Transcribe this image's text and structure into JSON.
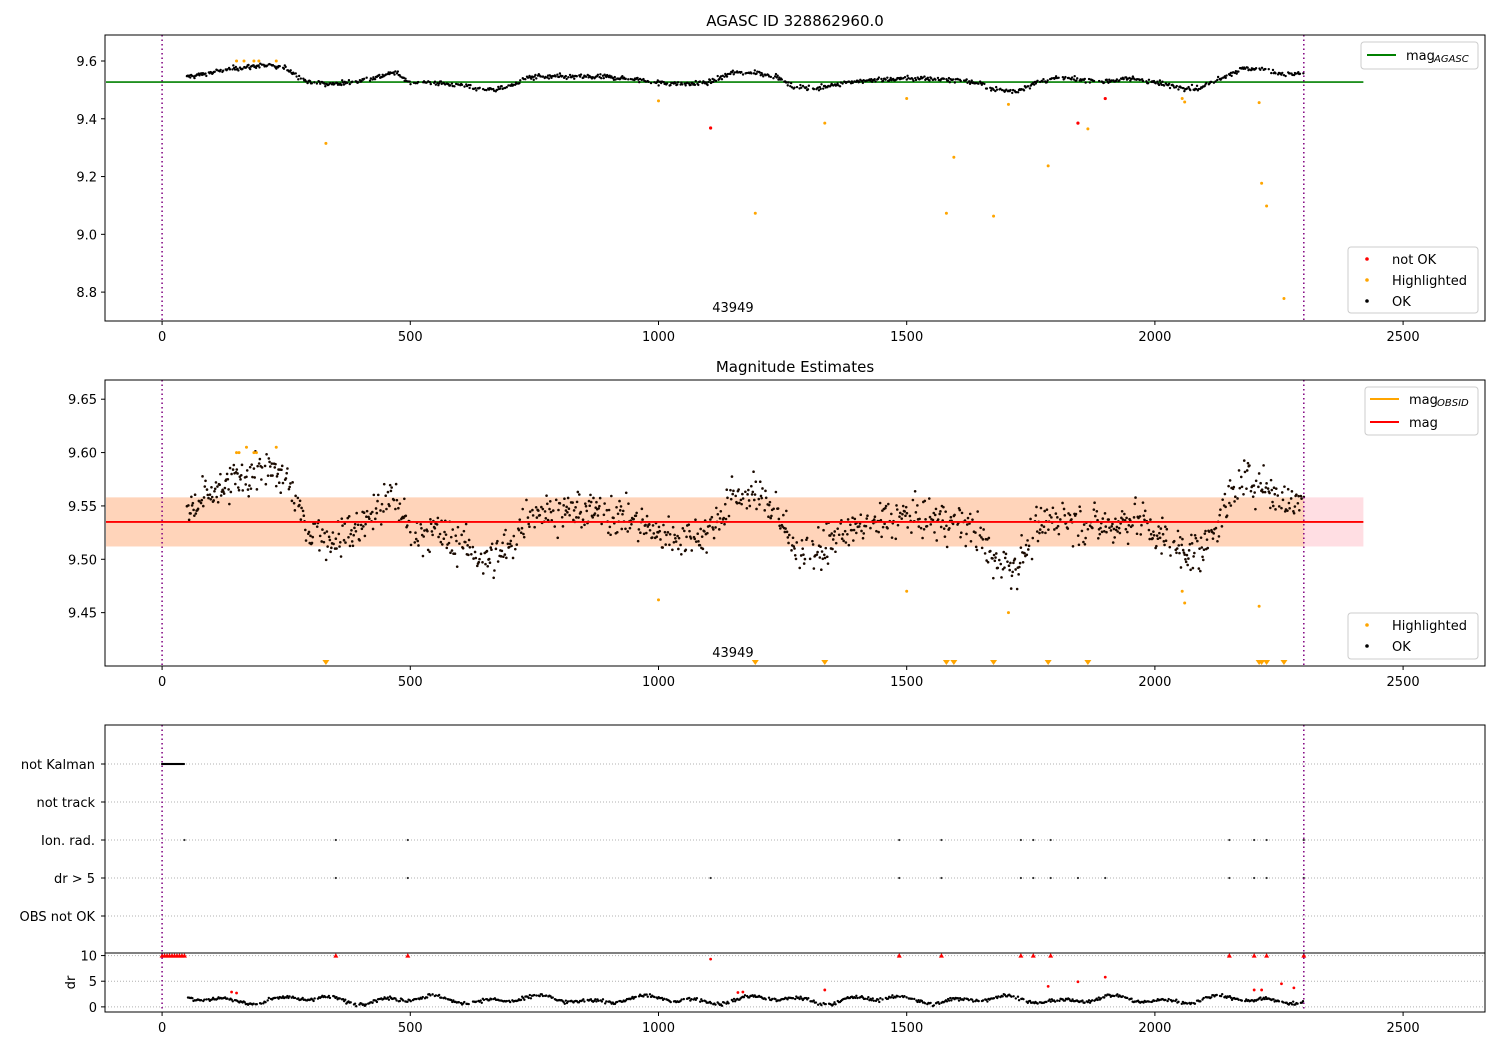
{
  "chart_data": [
    {
      "type": "scatter",
      "title": "AGASC ID 328862960.0",
      "annotation": "43949",
      "xlim": [
        -115,
        2665
      ],
      "ylim": [
        8.7,
        9.69
      ],
      "xticks": [
        0,
        500,
        1000,
        1500,
        2000,
        2500
      ],
      "yticks": [
        8.8,
        9.0,
        9.2,
        9.4,
        9.6
      ],
      "ytick_labels": [
        "8.8",
        "9.0",
        "9.2",
        "9.4",
        "9.6"
      ],
      "vlines": [
        0,
        2300
      ],
      "hlines": [
        {
          "name": "mag_AGASC",
          "y": 9.527,
          "x": [
            -115,
            2420
          ],
          "color": "#008000"
        }
      ],
      "legend_lines": [
        {
          "label": "mag",
          "sub": "AGASC",
          "color": "#008000"
        }
      ],
      "legend_points": [
        {
          "label": "not OK",
          "color": "#ff0000"
        },
        {
          "label": "Highlighted",
          "color": "#ffa500"
        },
        {
          "label": "OK",
          "color": "#000000"
        }
      ],
      "series": [
        {
          "name": "OK",
          "color": "#000000",
          "trend": [
            [
              50,
              9.545
            ],
            [
              100,
              9.56
            ],
            [
              150,
              9.575
            ],
            [
              200,
              9.585
            ],
            [
              250,
              9.575
            ],
            [
              290,
              9.53
            ],
            [
              330,
              9.52
            ],
            [
              380,
              9.525
            ],
            [
              420,
              9.54
            ],
            [
              470,
              9.56
            ],
            [
              500,
              9.525
            ],
            [
              550,
              9.525
            ],
            [
              600,
              9.515
            ],
            [
              650,
              9.5
            ],
            [
              700,
              9.51
            ],
            [
              740,
              9.545
            ],
            [
              800,
              9.545
            ],
            [
              900,
              9.545
            ],
            [
              960,
              9.535
            ],
            [
              1000,
              9.525
            ],
            [
              1050,
              9.52
            ],
            [
              1100,
              9.525
            ],
            [
              1150,
              9.56
            ],
            [
              1200,
              9.56
            ],
            [
              1240,
              9.545
            ],
            [
              1270,
              9.51
            ],
            [
              1320,
              9.505
            ],
            [
              1370,
              9.525
            ],
            [
              1400,
              9.53
            ],
            [
              1450,
              9.535
            ],
            [
              1500,
              9.54
            ],
            [
              1600,
              9.535
            ],
            [
              1640,
              9.525
            ],
            [
              1680,
              9.5
            ],
            [
              1720,
              9.495
            ],
            [
              1760,
              9.525
            ],
            [
              1800,
              9.54
            ],
            [
              1850,
              9.535
            ],
            [
              1900,
              9.53
            ],
            [
              1960,
              9.54
            ],
            [
              2000,
              9.525
            ],
            [
              2050,
              9.51
            ],
            [
              2090,
              9.505
            ],
            [
              2130,
              9.54
            ],
            [
              2180,
              9.575
            ],
            [
              2220,
              9.57
            ],
            [
              2260,
              9.555
            ],
            [
              2300,
              9.555
            ]
          ],
          "noise": 0.013
        },
        {
          "name": "Highlighted",
          "color": "#ffa500",
          "points": [
            [
              150,
              9.6
            ],
            [
              165,
              9.6
            ],
            [
              185,
              9.6
            ],
            [
              195,
              9.6
            ],
            [
              230,
              9.6
            ],
            [
              330,
              9.315
            ],
            [
              1000,
              9.462
            ],
            [
              1195,
              9.073
            ],
            [
              1335,
              9.385
            ],
            [
              1500,
              9.47
            ],
            [
              1580,
              9.073
            ],
            [
              1595,
              9.267
            ],
            [
              1675,
              9.063
            ],
            [
              1705,
              9.45
            ],
            [
              1785,
              9.237
            ],
            [
              1865,
              9.365
            ],
            [
              2055,
              9.47
            ],
            [
              2060,
              9.458
            ],
            [
              2210,
              9.456
            ],
            [
              2215,
              9.177
            ],
            [
              2225,
              9.098
            ],
            [
              2260,
              8.778
            ]
          ]
        },
        {
          "name": "not OK",
          "color": "#ff0000",
          "points": [
            [
              1105,
              9.368
            ],
            [
              1845,
              9.385
            ],
            [
              1900,
              9.47
            ]
          ]
        }
      ]
    },
    {
      "type": "scatter",
      "title": "Magnitude Estimates",
      "annotation": "43949",
      "xlim": [
        -115,
        2665
      ],
      "ylim": [
        9.4,
        9.668
      ],
      "xticks": [
        0,
        500,
        1000,
        1500,
        2000,
        2500
      ],
      "yticks": [
        9.45,
        9.5,
        9.55,
        9.6,
        9.65
      ],
      "ytick_labels": [
        "9.45",
        "9.50",
        "9.55",
        "9.60",
        "9.65"
      ],
      "vlines": [
        0,
        2300
      ],
      "band": {
        "y": [
          9.512,
          9.558
        ],
        "x": [
          -115,
          2420
        ],
        "color": "rgba(255,182,193,0.45)"
      },
      "band_inner": {
        "y": [
          9.512,
          9.558
        ],
        "x": [
          -115,
          2300
        ],
        "color": "rgba(255,165,0,0.18)"
      },
      "hlines": [
        {
          "name": "mag",
          "y": 9.535,
          "x": [
            -115,
            2420
          ],
          "color": "#ff0000"
        }
      ],
      "legend_lines": [
        {
          "label": "mag",
          "sub": "OBSID",
          "color": "#ffa500"
        },
        {
          "label": "mag",
          "sub": "",
          "color": "#ff0000"
        }
      ],
      "legend_points": [
        {
          "label": "Highlighted",
          "color": "#ffa500"
        },
        {
          "label": "OK",
          "color": "#000000"
        }
      ],
      "series": [
        {
          "name": "Highlighted",
          "color": "#ffa500",
          "points": [
            [
              150,
              9.6
            ],
            [
              155,
              9.6
            ],
            [
              170,
              9.605
            ],
            [
              185,
              9.6
            ],
            [
              190,
              9.6
            ],
            [
              230,
              9.605
            ],
            [
              1000,
              9.462
            ],
            [
              1500,
              9.47
            ],
            [
              1705,
              9.45
            ],
            [
              2055,
              9.47
            ],
            [
              2060,
              9.459
            ],
            [
              2210,
              9.456
            ]
          ]
        },
        {
          "name": "Highlighted (off-scale)",
          "color": "#ffa500",
          "marker": "triangle-down",
          "x": [
            330,
            1195,
            1335,
            1580,
            1595,
            1675,
            1785,
            1865,
            2210,
            2215,
            2225,
            2260
          ]
        }
      ]
    },
    {
      "type": "scatter",
      "xlim": [
        -115,
        2665
      ],
      "xticks": [
        0,
        500,
        1000,
        1500,
        2000,
        2500
      ],
      "categories": [
        "not Kalman",
        "not track",
        "Ion. rad.",
        "dr > 5",
        "OBS not OK"
      ],
      "vlines": [
        0,
        2300
      ],
      "flags": {
        "not Kalman": {
          "range": [
            0,
            45
          ]
        },
        "not track": {
          "x": []
        },
        "Ion. rad.": {
          "x": [
            45,
            350,
            495,
            1485,
            1570,
            1730,
            1755,
            1790,
            2150,
            2200,
            2225,
            2300
          ]
        },
        "dr > 5": {
          "x": [
            350,
            495,
            1105,
            1485,
            1570,
            1730,
            1755,
            1790,
            1845,
            1900,
            2150,
            2200,
            2225,
            2300
          ]
        },
        "OBS not OK": {
          "x": []
        }
      }
    },
    {
      "type": "scatter",
      "ylabel": "dr",
      "xlim": [
        -115,
        2665
      ],
      "ylim": [
        -1,
        10.5
      ],
      "xticks": [
        0,
        500,
        1000,
        1500,
        2000,
        2500
      ],
      "xtick_labels": [
        "0",
        "500",
        "1000",
        "1500",
        "2000",
        "2500"
      ],
      "yticks": [
        0,
        5,
        10
      ],
      "ytick_labels": [
        "0",
        "5",
        "10"
      ],
      "vlines": [
        0,
        2300
      ],
      "series": [
        {
          "name": "capped (red)",
          "color": "#ff0000",
          "marker": "triangle-up",
          "y": 10,
          "x": [
            0,
            5,
            10,
            15,
            20,
            25,
            30,
            35,
            40,
            45,
            350,
            495,
            1485,
            1570,
            1730,
            1755,
            1790,
            2150,
            2200,
            2225,
            2300
          ]
        },
        {
          "name": "red points",
          "color": "#ff0000",
          "points": [
            [
              140,
              2.9
            ],
            [
              150,
              2.7
            ],
            [
              1105,
              9.3
            ],
            [
              1160,
              2.8
            ],
            [
              1170,
              2.9
            ],
            [
              1335,
              3.3
            ],
            [
              1785,
              4.0
            ],
            [
              1845,
              4.9
            ],
            [
              1900,
              5.8
            ],
            [
              2200,
              3.3
            ],
            [
              2215,
              3.3
            ],
            [
              2255,
              4.5
            ],
            [
              2280,
              3.7
            ]
          ]
        },
        {
          "name": "dr",
          "color": "#000000",
          "start": 50,
          "end": 2300,
          "mean": 1.4,
          "amp": 0.9
        }
      ]
    }
  ]
}
